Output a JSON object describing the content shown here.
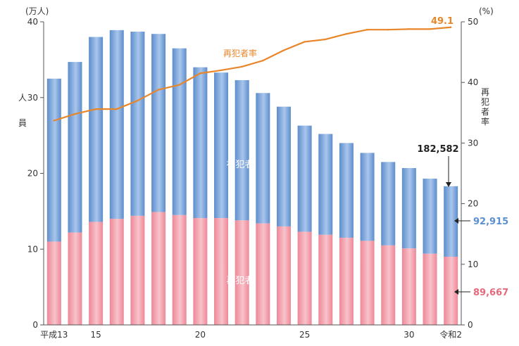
{
  "chart_data": {
    "type": "bar+line",
    "categories": [
      "平成13",
      "14",
      "15",
      "16",
      "17",
      "18",
      "19",
      "20",
      "21",
      "22",
      "23",
      "24",
      "25",
      "26",
      "27",
      "28",
      "29",
      "30",
      "令和元",
      "令和2"
    ],
    "x_tick_labels": [
      "平成13",
      "15",
      "20",
      "25",
      "30",
      "令和2"
    ],
    "x_tick_indices": [
      0,
      2,
      7,
      12,
      17,
      19
    ],
    "series": [
      {
        "name": "再犯者",
        "kind": "stacked-bar",
        "color": "#f19ca6",
        "values": [
          11.0,
          12.2,
          13.6,
          14.0,
          14.4,
          14.9,
          14.5,
          14.1,
          14.1,
          13.8,
          13.4,
          13.0,
          12.3,
          11.9,
          11.5,
          11.1,
          10.5,
          10.1,
          9.4,
          9.0
        ]
      },
      {
        "name": "初犯者",
        "kind": "stacked-bar",
        "color": "#6f9fd8",
        "values": [
          21.5,
          22.5,
          24.4,
          24.9,
          24.3,
          23.5,
          22.0,
          19.9,
          19.2,
          18.5,
          17.2,
          15.8,
          14.0,
          13.3,
          12.5,
          11.6,
          11.0,
          10.6,
          9.9,
          9.3
        ]
      },
      {
        "name": "再犯者率",
        "kind": "line",
        "axis": "right",
        "color": "#e8862a",
        "values": [
          33.7,
          34.8,
          35.6,
          35.6,
          37.0,
          38.8,
          39.6,
          41.5,
          42.0,
          42.6,
          43.6,
          45.3,
          46.7,
          47.1,
          48.0,
          48.7,
          48.7,
          48.8,
          48.8,
          49.1
        ]
      }
    ],
    "y_left": {
      "label": "人員",
      "unit": "(万人)",
      "ylim": [
        0,
        40
      ],
      "ticks": [
        0,
        10,
        20,
        30,
        40
      ]
    },
    "y_right": {
      "label": "再犯者率",
      "unit": "(%)",
      "ylim": [
        0,
        50
      ],
      "ticks": [
        0,
        10,
        20,
        30,
        40,
        50
      ]
    },
    "annotations": {
      "total_last": "182,582",
      "first_last": "92,915",
      "repeat_last": "89,667",
      "rate_last": "49.1"
    },
    "grid": false
  }
}
